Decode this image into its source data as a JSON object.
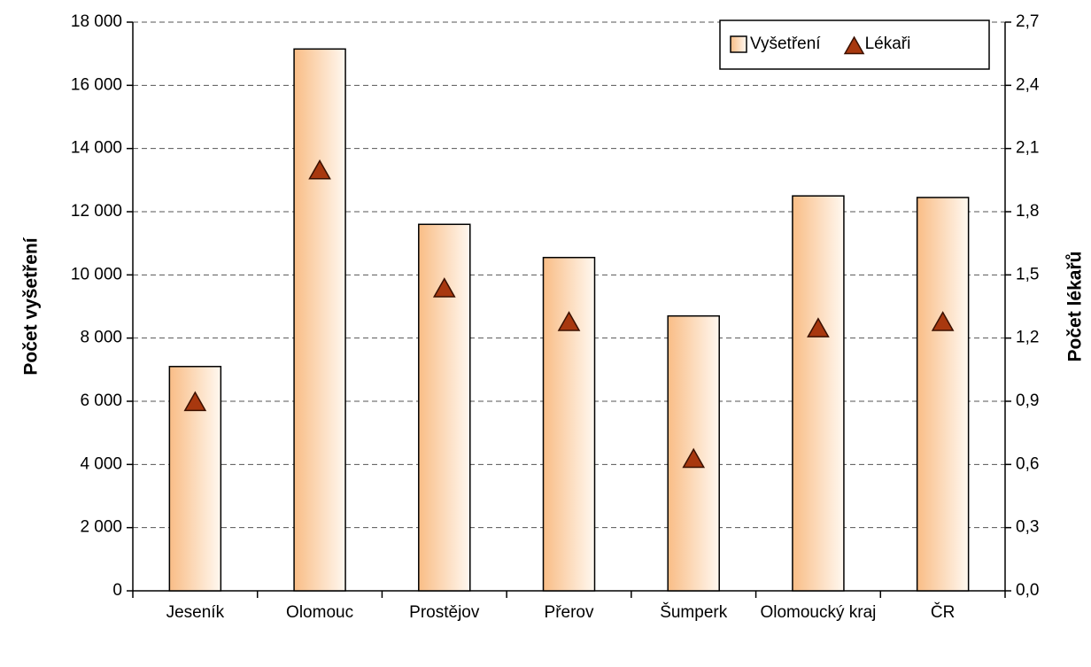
{
  "chart_data": {
    "type": "bar",
    "y_label": "Počet vyšetření",
    "y2_label": "Počet lékařů",
    "categories": [
      "Jeseník",
      "Olomouc",
      "Prostějov",
      "Přerov",
      "Šumperk",
      "Olomoucký kraj",
      "ČR"
    ],
    "series": [
      {
        "name": "Vyšetření",
        "type": "bar",
        "color": "#f9bd86",
        "values": [
          7100,
          17150,
          11600,
          10550,
          8700,
          12500,
          12450
        ]
      },
      {
        "name": "Lékaři",
        "type": "scatter",
        "axis": "y2",
        "color": "#a8380f",
        "values": [
          0.9,
          2.0,
          1.44,
          1.28,
          0.63,
          1.25,
          1.28
        ]
      }
    ],
    "ylim": [
      0,
      18000
    ],
    "yticks": [
      0,
      {
        "value": 2000,
        "label": "2 000"
      },
      {
        "value": 4000,
        "label": "4 000"
      },
      {
        "value": 6000,
        "label": "6 000"
      },
      {
        "value": 8000,
        "label": "8 000"
      },
      {
        "value": 10000,
        "label": "10 000"
      },
      {
        "value": 12000,
        "label": "12 000"
      },
      {
        "value": 14000,
        "label": "14 000"
      },
      {
        "value": 16000,
        "label": "16 000"
      },
      {
        "value": 18000,
        "label": "18 000"
      }
    ],
    "y2lim": [
      0,
      2.7
    ],
    "y2ticks": [
      {
        "value": 0,
        "label": "0,0"
      },
      {
        "value": 0.3,
        "label": "0,3"
      },
      {
        "value": 0.6,
        "label": "0,6"
      },
      {
        "value": 0.9,
        "label": "0,9"
      },
      {
        "value": 1.2,
        "label": "1,2"
      },
      {
        "value": 1.5,
        "label": "1,5"
      },
      {
        "value": 1.8,
        "label": "1,8"
      },
      {
        "value": 2.1,
        "label": "2,1"
      },
      {
        "value": 2.4,
        "label": "2,4"
      },
      {
        "value": 2.7,
        "label": "2,7"
      }
    ],
    "grid": true,
    "legend": "upper right"
  }
}
